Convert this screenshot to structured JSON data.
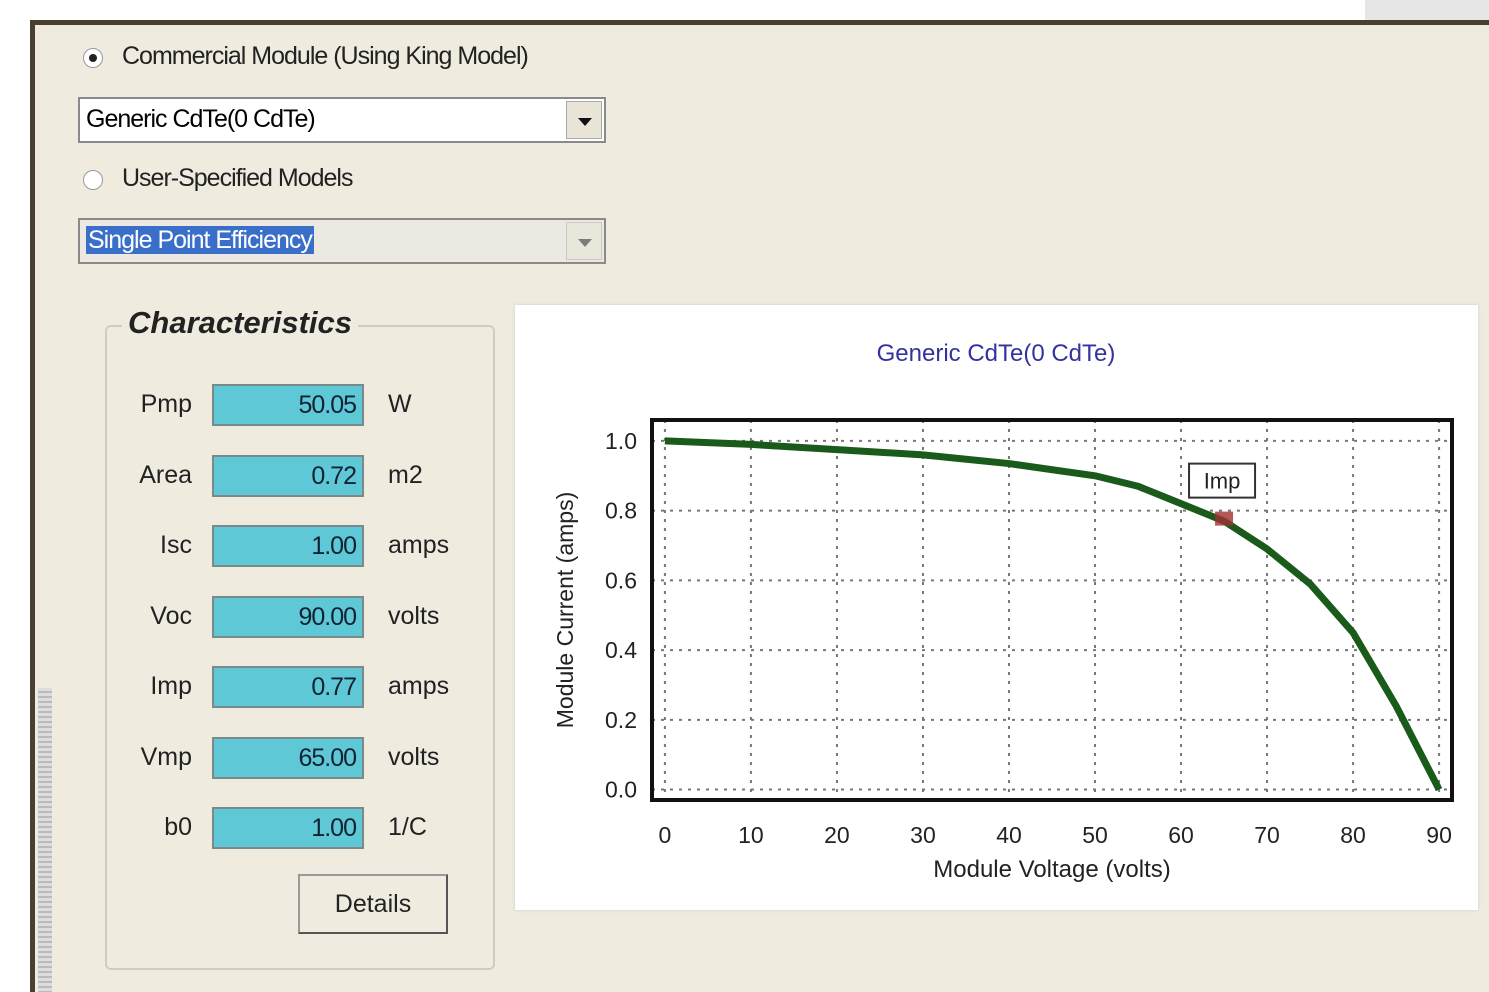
{
  "model_options": [
    {
      "label": "Commercial Module (Using King Model)",
      "selected": true,
      "dropdown": "Generic CdTe(0 CdTe)"
    },
    {
      "label": "User-Specified Models",
      "selected": false,
      "dropdown": "Single Point Efficiency"
    }
  ],
  "characteristics": {
    "title": "Characteristics",
    "rows": [
      {
        "label": "Pmp",
        "value": "50.05",
        "unit": "W"
      },
      {
        "label": "Area",
        "value": "0.72",
        "unit": "m2"
      },
      {
        "label": "Isc",
        "value": "1.00",
        "unit": "amps"
      },
      {
        "label": "Voc",
        "value": "90.00",
        "unit": "volts"
      },
      {
        "label": "Imp",
        "value": "0.77",
        "unit": "amps"
      },
      {
        "label": "Vmp",
        "value": "65.00",
        "unit": "volts"
      },
      {
        "label": "b0",
        "value": "1.00",
        "unit": "1/C"
      }
    ],
    "button": "Details"
  },
  "chart_data": {
    "type": "line",
    "title": "Generic CdTe(0 CdTe)",
    "x_label": "Module Voltage (volts)",
    "y_label": "Module Current (amps)",
    "x": [
      0,
      5,
      10,
      20,
      30,
      40,
      50,
      55,
      60,
      65,
      70,
      75,
      80,
      85,
      90
    ],
    "series": [
      {
        "color": "#1a5a1a",
        "values": [
          1.0,
          0.995,
          0.99,
          0.975,
          0.96,
          0.935,
          0.9,
          0.87,
          0.82,
          0.77,
          0.69,
          0.59,
          0.45,
          0.24,
          0.0
        ]
      }
    ],
    "annotations": [
      {
        "text": "Imp",
        "x": 65,
        "y": 0.78,
        "color": "#a03030"
      }
    ],
    "xlim": [
      -1.5,
      91.5
    ],
    "ylim": [
      -0.03,
      1.06
    ],
    "xticks": [
      0,
      10,
      20,
      30,
      40,
      50,
      60,
      70,
      80,
      90
    ],
    "yticks": [
      {
        "value": 0,
        "label": "0.0"
      },
      {
        "value": 0.2,
        "label": "0.2"
      },
      {
        "value": 0.4,
        "label": "0.4"
      },
      {
        "value": 0.6,
        "label": "0.6"
      },
      {
        "value": 0.8,
        "label": "0.8"
      },
      {
        "value": 1,
        "label": "1.0"
      }
    ],
    "grid": true
  }
}
